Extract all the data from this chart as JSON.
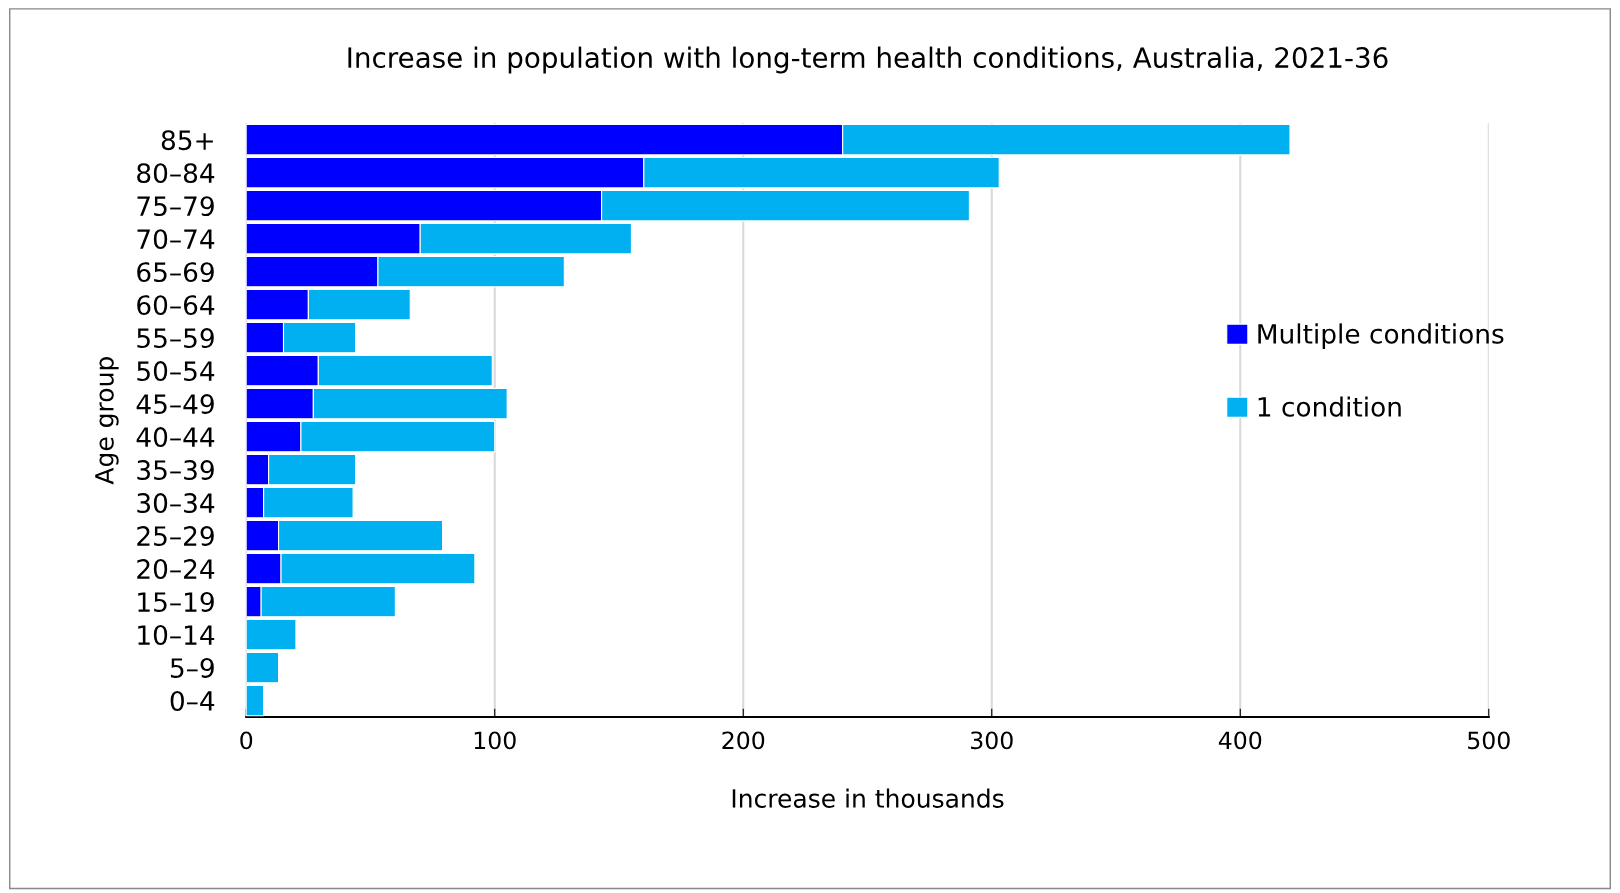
{
  "chart_data": {
    "type": "bar",
    "orientation": "horizontal",
    "stacked": true,
    "title": "Increase in population with long-term health conditions, Australia, 2021-36",
    "xlabel": "Increase in thousands",
    "ylabel": "Age group",
    "categories": [
      "85+",
      "80–84",
      "75–79",
      "70–74",
      "65–69",
      "60–64",
      "55–59",
      "50–54",
      "45–49",
      "40–44",
      "35–39",
      "30–34",
      "25–29",
      "20–24",
      "15–19",
      "10–14",
      "5–9",
      "0–4"
    ],
    "series": [
      {
        "name": "Multiple conditions",
        "color": "#0000ff",
        "values": [
          240,
          160,
          143,
          70,
          53,
          25,
          15,
          29,
          27,
          22,
          9,
          7,
          13,
          14,
          6,
          0,
          0,
          0
        ]
      },
      {
        "name": "1 condition",
        "color": "#00b0f0",
        "values": [
          180,
          143,
          148,
          85,
          75,
          41,
          29,
          70,
          78,
          78,
          35,
          36,
          66,
          78,
          54,
          20,
          13,
          7
        ]
      }
    ],
    "xlim": [
      0,
      500
    ],
    "xticks": [
      0,
      100,
      200,
      300,
      400,
      500
    ],
    "grid": "x",
    "legend": "right"
  }
}
